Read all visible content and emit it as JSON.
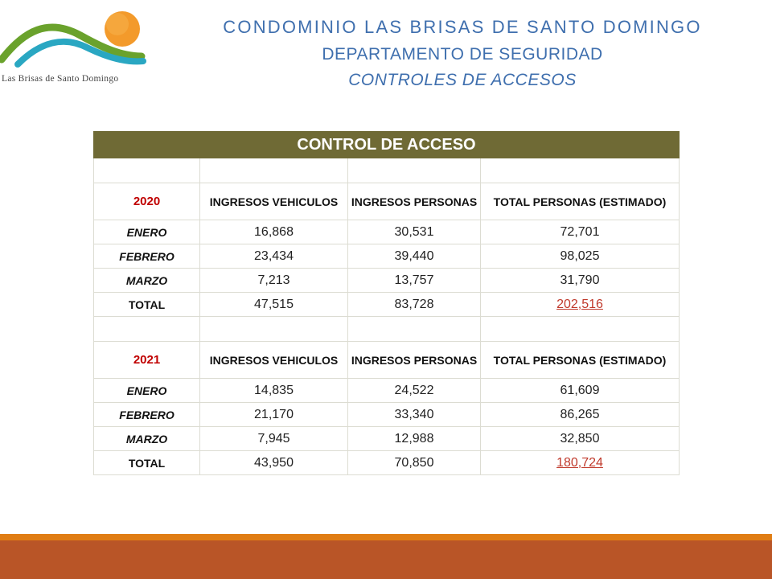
{
  "logo": {
    "text": "Las Brisas de Santo Domingo"
  },
  "header": {
    "line1": "CONDOMINIO LAS  BRISAS DE SANTO DOMINGO",
    "line2": "DEPARTAMENTO  DE SEGURIDAD",
    "line3": "CONTROLES DE ACCESOS"
  },
  "colors": {
    "title_bar": "#6f6a35",
    "header_text": "#3f6fae",
    "year": "#c00000",
    "total_highlight": "#c0392b",
    "footer_orange": "#e07d14",
    "footer_rust": "#b95527"
  },
  "table": {
    "title": "CONTROL DE ACCESO",
    "sections": [
      {
        "year": "2020",
        "columns": [
          "INGRESOS VEHICULOS",
          "INGRESOS PERSONAS",
          "TOTAL PERSONAS (ESTIMADO)"
        ],
        "rows": [
          {
            "label": "ENERO",
            "veh": "16,868",
            "per": "30,531",
            "total": "72,701"
          },
          {
            "label": "FEBRERO",
            "veh": "23,434",
            "per": "39,440",
            "total": "98,025"
          },
          {
            "label": "MARZO",
            "veh": "7,213",
            "per": "13,757",
            "total": "31,790"
          },
          {
            "label": "TOTAL",
            "veh": "47,515",
            "per": "83,728",
            "total": "202,516"
          }
        ]
      },
      {
        "year": "2021",
        "columns": [
          "INGRESOS VEHICULOS",
          "INGRESOS PERSONAS",
          "TOTAL PERSONAS (ESTIMADO)"
        ],
        "rows": [
          {
            "label": "ENERO",
            "veh": "14,835",
            "per": "24,522",
            "total": "61,609"
          },
          {
            "label": "FEBRERO",
            "veh": "21,170",
            "per": "33,340",
            "total": "86,265"
          },
          {
            "label": "MARZO",
            "veh": "7,945",
            "per": "12,988",
            "total": "32,850"
          },
          {
            "label": "TOTAL",
            "veh": "43,950",
            "per": "70,850",
            "total": "180,724"
          }
        ]
      }
    ]
  }
}
